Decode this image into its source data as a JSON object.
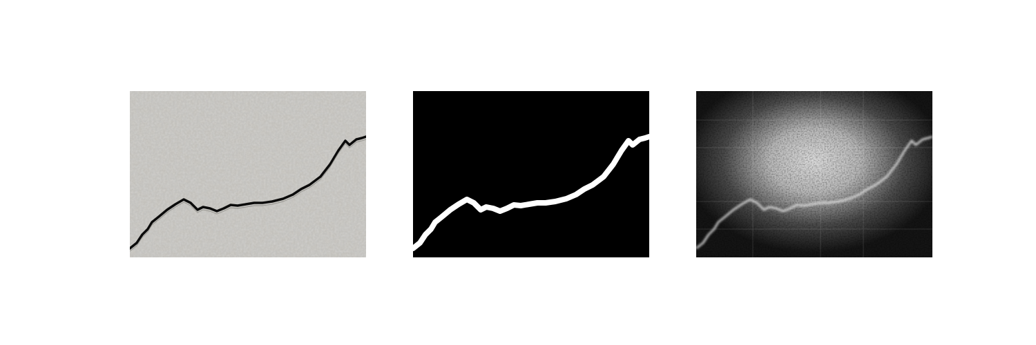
{
  "figure": {
    "panels": [
      {
        "id": "original",
        "description_name": "cracked-surface-photo"
      },
      {
        "id": "mask",
        "description_name": "crack-segmentation-mask"
      },
      {
        "id": "heatmap",
        "description_name": "crack-saliency-heatmap"
      }
    ],
    "colors": {
      "surface": "#c2c0bb",
      "crack": "#0a0a0a",
      "mask_bg": "#000000",
      "mask_fg": "#ffffff",
      "heat_dark": "#151515",
      "heat_light": "#d8d8d8"
    }
  }
}
